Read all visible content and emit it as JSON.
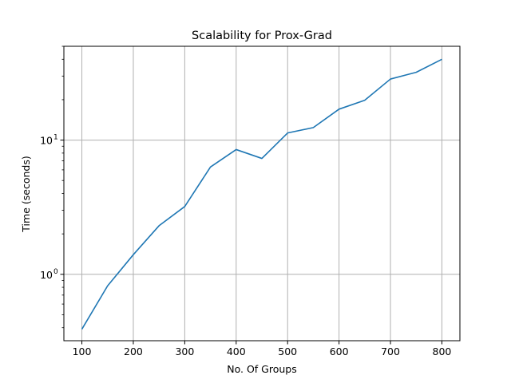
{
  "chart_data": {
    "type": "line",
    "title": "Scalability for Prox-Grad",
    "xlabel": "No. Of Groups",
    "ylabel": "Time (seconds)",
    "x": [
      100,
      150,
      200,
      250,
      300,
      350,
      400,
      450,
      500,
      550,
      600,
      650,
      700,
      750,
      800
    ],
    "series": [
      {
        "values": [
          0.39,
          0.82,
          1.4,
          2.3,
          3.2,
          6.3,
          8.5,
          7.3,
          11.3,
          12.4,
          17.0,
          19.8,
          28.5,
          32.0,
          40.0
        ],
        "color": "#1f77b4"
      }
    ],
    "xticks": [
      100,
      200,
      300,
      400,
      500,
      600,
      700,
      800
    ],
    "xtick_labels": [
      "100",
      "200",
      "300",
      "400",
      "500",
      "600",
      "700",
      "800"
    ],
    "yticks": [
      1,
      10
    ],
    "ytick_labels": [
      {
        "base": "10",
        "exp": "0"
      },
      {
        "base": "10",
        "exp": "1"
      }
    ],
    "xlim": [
      65,
      835
    ],
    "ylim": [
      0.32,
      50
    ],
    "yscale": "log",
    "grid": true,
    "grid_color": "#b0b0b0",
    "axis_color": "#000000"
  }
}
